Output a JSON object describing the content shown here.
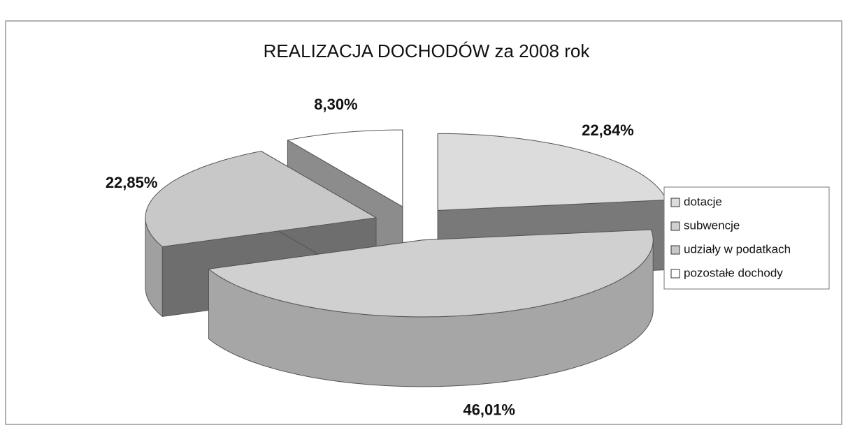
{
  "chart_data": {
    "type": "pie",
    "title": "REALIZACJA  DOCHODÓW za 2008 rok",
    "categories": [
      "dotacje",
      "subwencje",
      "udziały w podatkach",
      "pozostałe dochody"
    ],
    "values": [
      22.84,
      46.01,
      22.85,
      8.3
    ],
    "value_labels": [
      "22,84%",
      "46,01%",
      "22,85%",
      "8,30%"
    ],
    "colors": [
      "#dcdcdc",
      "#d0d0d0",
      "#c8c8c8",
      "#ffffff"
    ],
    "legend": "right"
  }
}
